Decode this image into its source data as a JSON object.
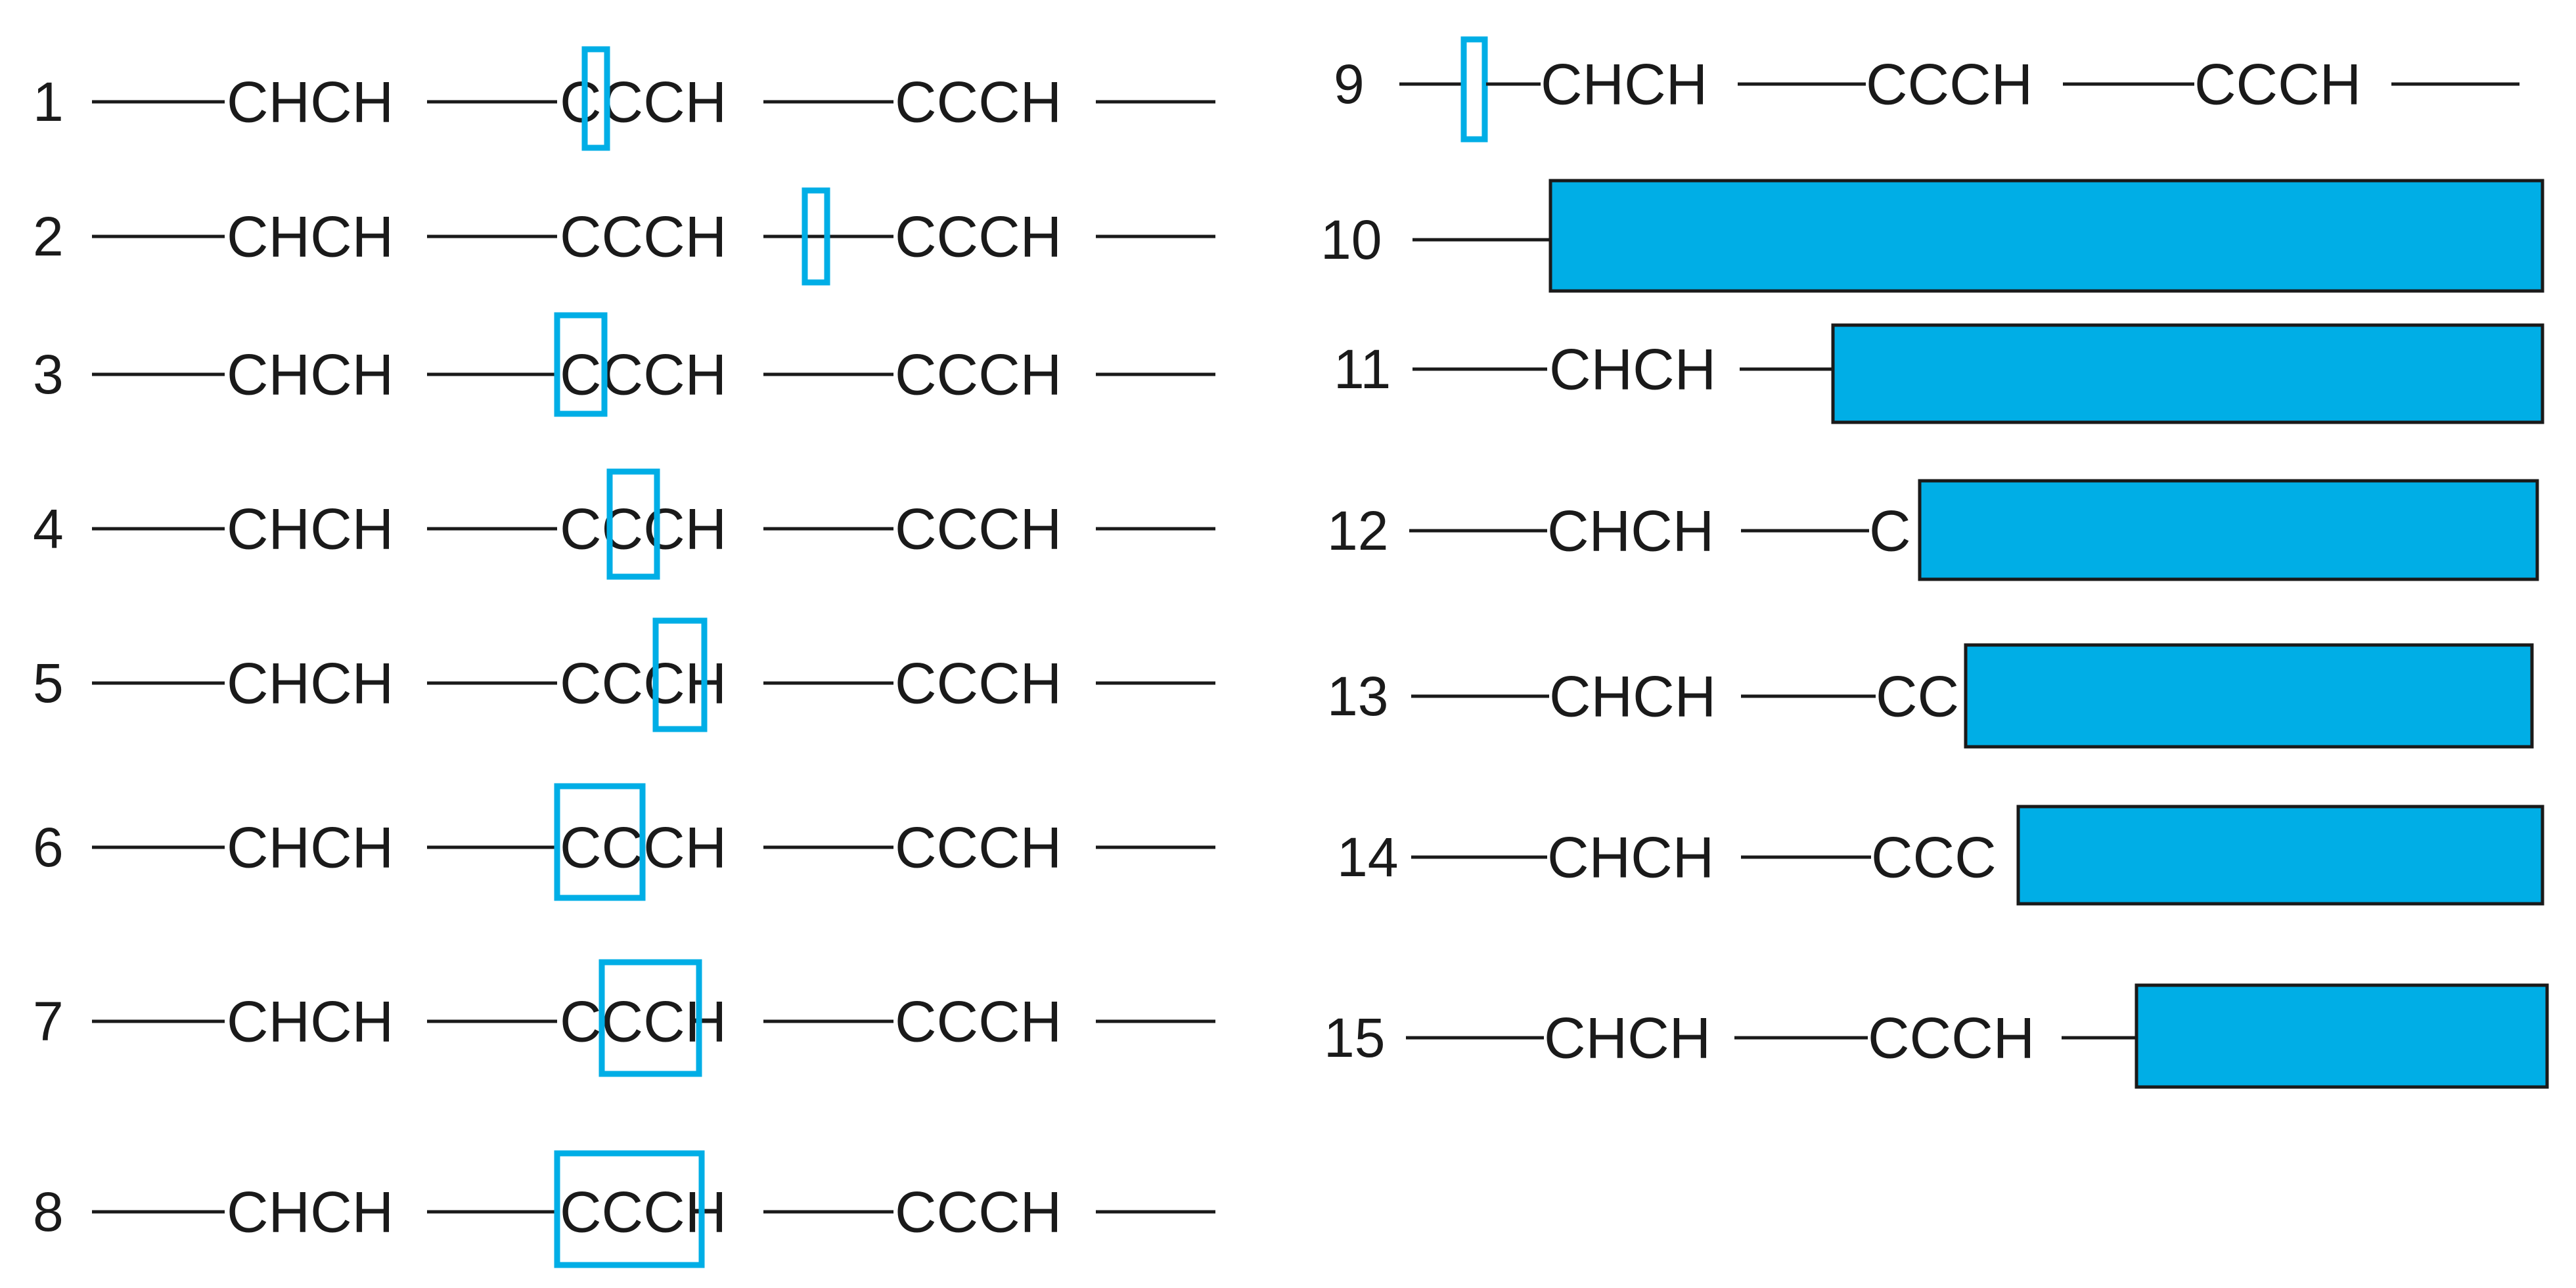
{
  "colors": {
    "highlight": "#00aee6",
    "block": "#00aee6",
    "line": "#1a1a1a"
  },
  "rows": [
    {
      "num": "1",
      "labels": [
        "CHCH",
        "CCCH",
        "CCCH"
      ]
    },
    {
      "num": "2",
      "labels": [
        "CHCH",
        "CCCH",
        "CCCH"
      ]
    },
    {
      "num": "3",
      "labels": [
        "CHCH",
        "CCCH",
        "CCCH"
      ]
    },
    {
      "num": "4",
      "labels": [
        "CHCH",
        "CCCH",
        "CCCH"
      ]
    },
    {
      "num": "5",
      "labels": [
        "CHCH",
        "CCCH",
        "CCCH"
      ]
    },
    {
      "num": "6",
      "labels": [
        "CHCH",
        "CCCH",
        "CCCH"
      ]
    },
    {
      "num": "7",
      "labels": [
        "CHCH",
        "CCCH",
        "CCCH"
      ]
    },
    {
      "num": "8",
      "labels": [
        "CHCH",
        "CCCH",
        "CCCH"
      ]
    },
    {
      "num": "9",
      "labels": [
        "CHCH",
        "CCCH",
        "CCCH"
      ]
    },
    {
      "num": "10",
      "labels": []
    },
    {
      "num": "11",
      "labels": [
        "CHCH"
      ]
    },
    {
      "num": "12",
      "labels": [
        "CHCH",
        "C"
      ]
    },
    {
      "num": "13",
      "labels": [
        "CHCH",
        "CC"
      ]
    },
    {
      "num": "14",
      "labels": [
        "CHCH",
        "CCC"
      ]
    },
    {
      "num": "15",
      "labels": [
        "CHCH",
        "CCCH"
      ]
    }
  ]
}
